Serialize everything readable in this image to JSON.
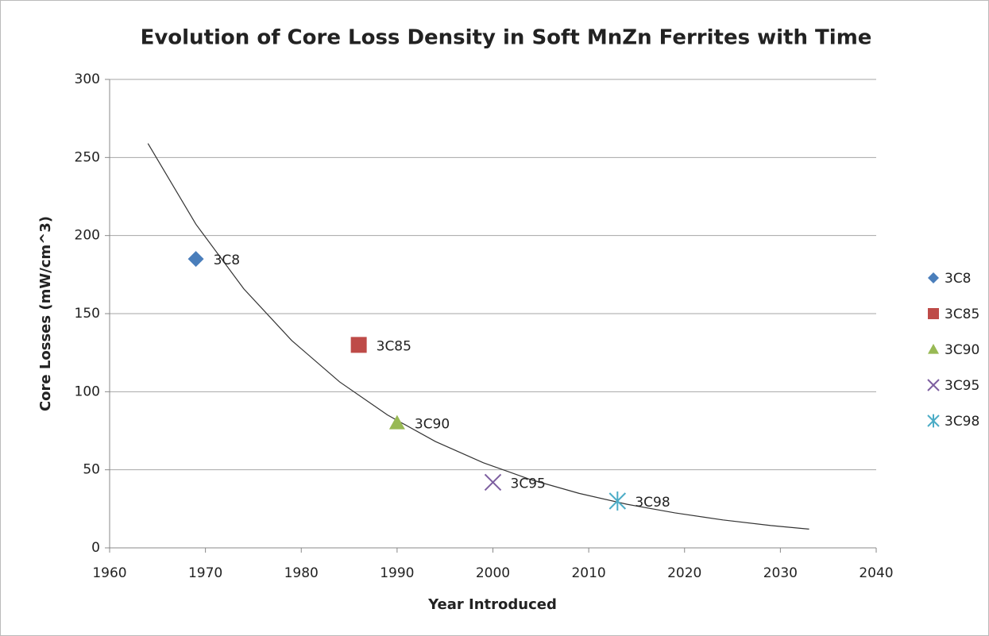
{
  "chart_data": {
    "type": "scatter",
    "title": "Evolution of Core Loss Density in Soft MnZn Ferrites with Time",
    "x_label": "Year Introduced",
    "y_label": "Core Losses (mW/cm^3)",
    "xlim": [
      1960,
      2040
    ],
    "xticks": [
      1960,
      1970,
      1980,
      1990,
      2000,
      2010,
      2020,
      2030,
      2040
    ],
    "ylim": [
      0,
      300
    ],
    "yticks": [
      0,
      50,
      100,
      150,
      200,
      250,
      300
    ],
    "grid": true,
    "legend": "right",
    "series": [
      {
        "name": "3C8",
        "color": "#4a7ebb",
        "marker": "diamond",
        "x": [
          1969
        ],
        "values": [
          185
        ]
      },
      {
        "name": "3C85",
        "color": "#be4b48",
        "marker": "square",
        "x": [
          1986
        ],
        "values": [
          130
        ]
      },
      {
        "name": "3C90",
        "color": "#98b954",
        "marker": "triangle",
        "x": [
          1990
        ],
        "values": [
          80
        ]
      },
      {
        "name": "3C95",
        "color": "#7d5fa0",
        "marker": "x",
        "x": [
          2000
        ],
        "values": [
          42
        ]
      },
      {
        "name": "3C98",
        "color": "#4bacc6",
        "marker": "star",
        "x": [
          2013
        ],
        "values": [
          30
        ]
      }
    ],
    "trendline": {
      "color": "#333333",
      "x": [
        1964,
        1969,
        1974,
        1979,
        1984,
        1989,
        1994,
        1999,
        2004,
        2009,
        2014,
        2019,
        2024,
        2029,
        2033
      ],
      "values": [
        259,
        207.3,
        165.9,
        132.8,
        106.3,
        85.1,
        68.1,
        54.5,
        43.6,
        34.9,
        27.9,
        22.4,
        17.9,
        14.3,
        12
      ]
    }
  }
}
